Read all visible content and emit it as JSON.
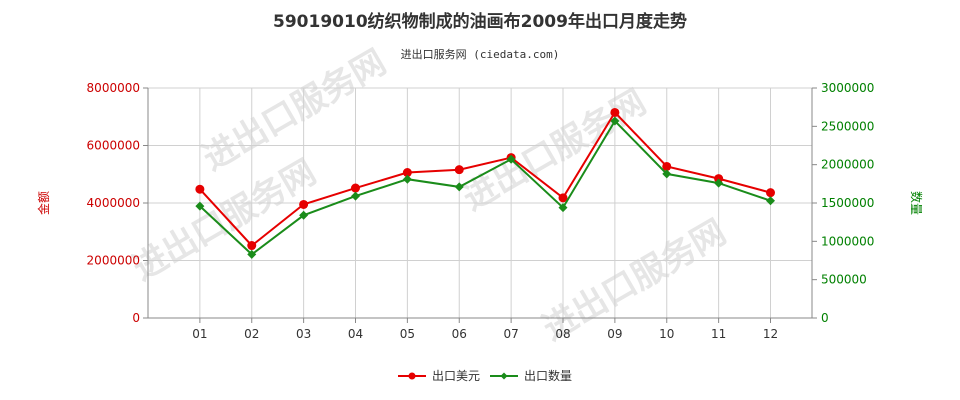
{
  "chart_data": {
    "type": "line",
    "title": "59019010纺织物制成的油画布2009年出口月度走势",
    "subtitle": "进出口服务网 (ciedata.com)",
    "watermark": "进出口服务网",
    "categories": [
      "01",
      "02",
      "03",
      "04",
      "05",
      "06",
      "07",
      "08",
      "09",
      "10",
      "11",
      "12"
    ],
    "y_left": {
      "label": "金额",
      "range": [
        0,
        8000000
      ],
      "ticks": [
        "0",
        "2000000",
        "4000000",
        "6000000",
        "8000000"
      ],
      "tick_values": [
        0,
        2000000,
        4000000,
        6000000,
        8000000
      ],
      "color": "#cc0000"
    },
    "y_right": {
      "label": "数量",
      "range": [
        0,
        3000000
      ],
      "ticks": [
        "0",
        "500000",
        "1000000",
        "1500000",
        "2000000",
        "2500000",
        "3000000"
      ],
      "tick_values": [
        0,
        500000,
        1000000,
        1500000,
        2000000,
        2500000,
        3000000
      ],
      "color": "#008000"
    },
    "grid": true,
    "legend_position": "bottom-center",
    "series": [
      {
        "name": "出口美元",
        "axis": "left",
        "color": "#e60000",
        "marker": "circle",
        "values": [
          4480000,
          2520000,
          3950000,
          4520000,
          5060000,
          5160000,
          5580000,
          4180000,
          7150000,
          5270000,
          4850000,
          4360000
        ]
      },
      {
        "name": "出口数量",
        "axis": "right",
        "color": "#1a8c1a",
        "marker": "diamond",
        "values": [
          1460000,
          830000,
          1340000,
          1590000,
          1810000,
          1710000,
          2070000,
          1440000,
          2570000,
          1880000,
          1760000,
          1530000
        ]
      }
    ]
  }
}
